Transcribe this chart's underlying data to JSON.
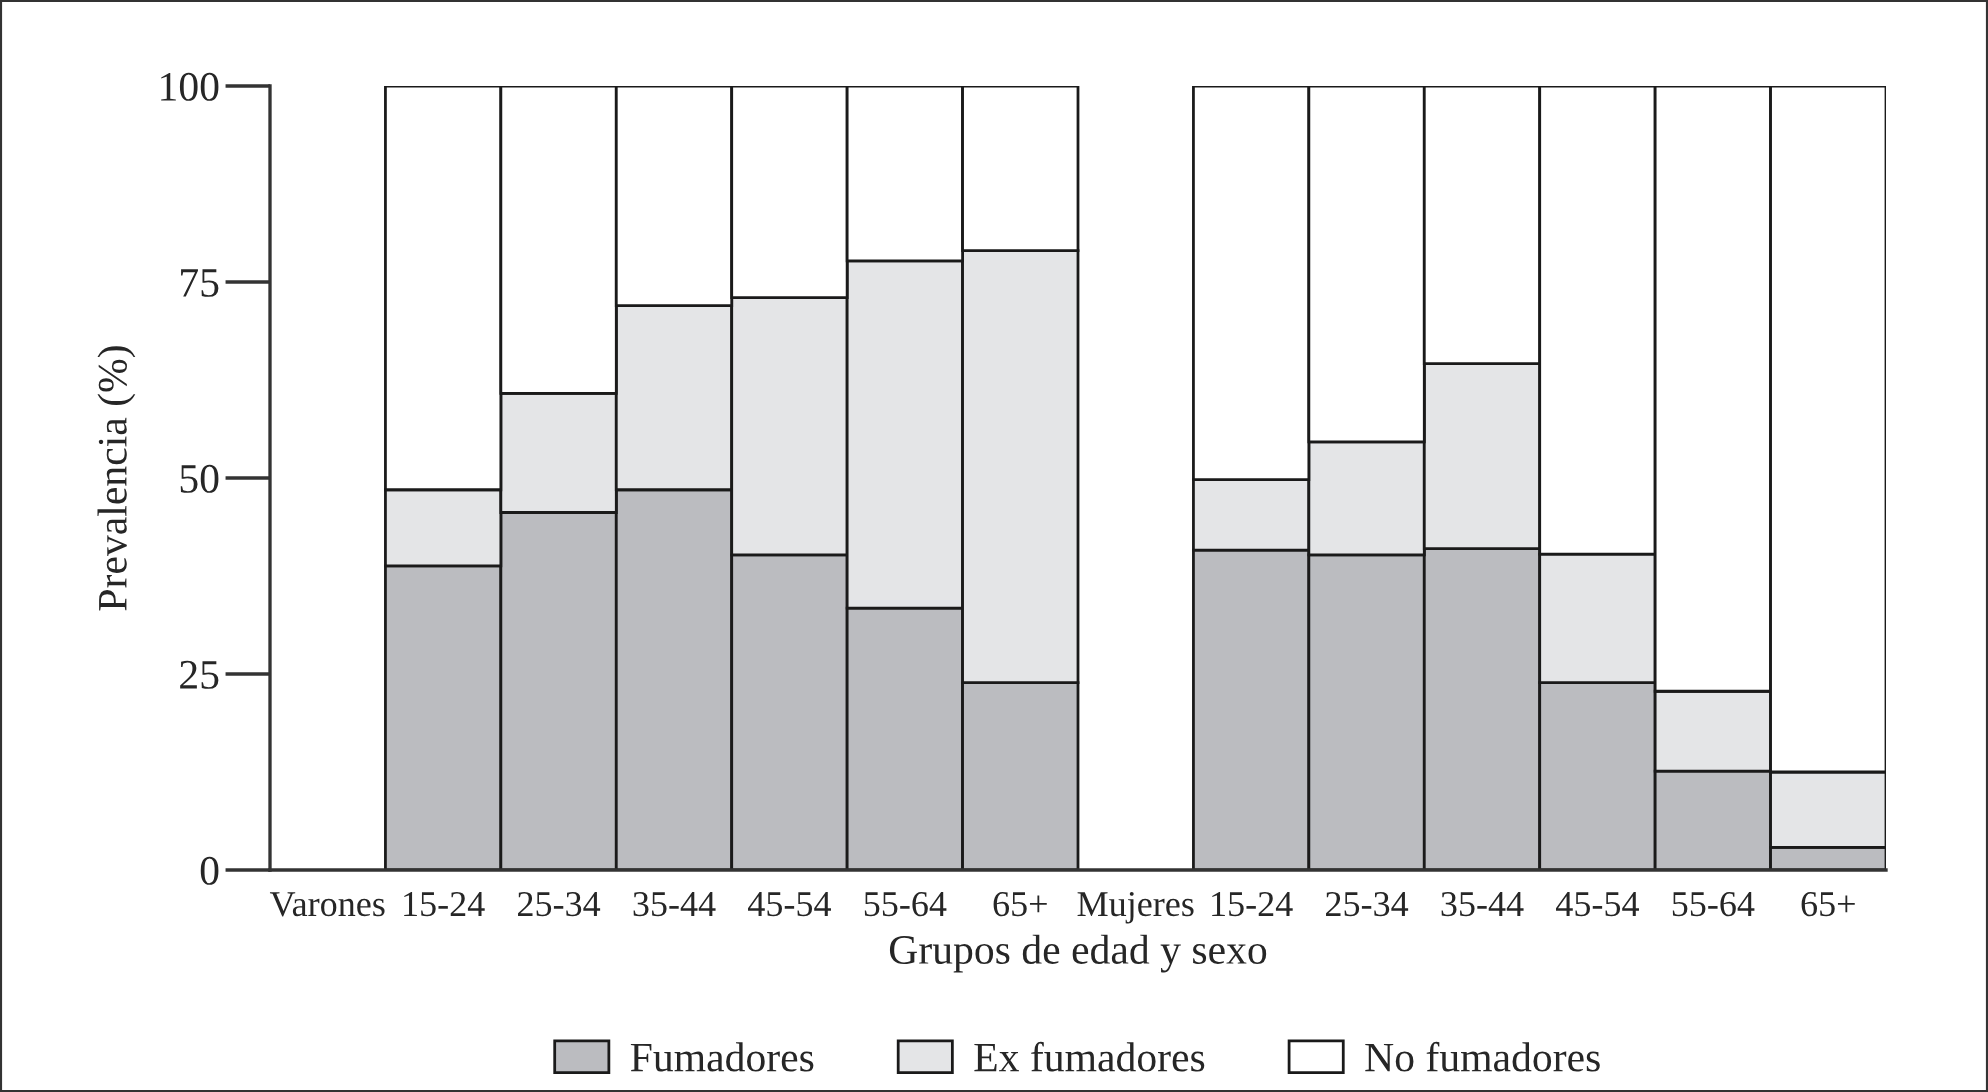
{
  "chart_data": {
    "type": "bar",
    "stacked": true,
    "xlabel": "Grupos de edad y sexo",
    "ylabel": "Prevalencia (%)",
    "categories": [
      "Varones",
      "15-24",
      "25-34",
      "35-44",
      "45-54",
      "55-64",
      "65+",
      "Mujeres",
      "15-24",
      "25-34",
      "35-44",
      "45-54",
      "55-64",
      "65+"
    ],
    "series": [
      {
        "name": "Fumadores",
        "color": "#bbbcc0",
        "values": [
          null,
          38.8,
          45.6,
          48.5,
          40.2,
          33.4,
          23.9,
          null,
          40.8,
          40.2,
          41.0,
          23.9,
          12.6,
          2.9
        ]
      },
      {
        "name": "Ex fumadores",
        "color": "#e4e5e7",
        "values": [
          null,
          9.7,
          15.2,
          23.5,
          32.8,
          44.3,
          55.1,
          null,
          9.0,
          14.4,
          23.6,
          16.4,
          10.2,
          9.6
        ]
      },
      {
        "name": "No fumadores",
        "color": "#ffffff",
        "values": [
          null,
          51.5,
          39.2,
          28.0,
          27.0,
          22.3,
          21.0,
          null,
          50.2,
          45.4,
          35.4,
          59.7,
          77.2,
          87.5
        ]
      }
    ],
    "ylim": [
      0,
      100
    ],
    "yticks": [
      0,
      25,
      50,
      75,
      100
    ],
    "grid": false,
    "legend": "bottom"
  }
}
